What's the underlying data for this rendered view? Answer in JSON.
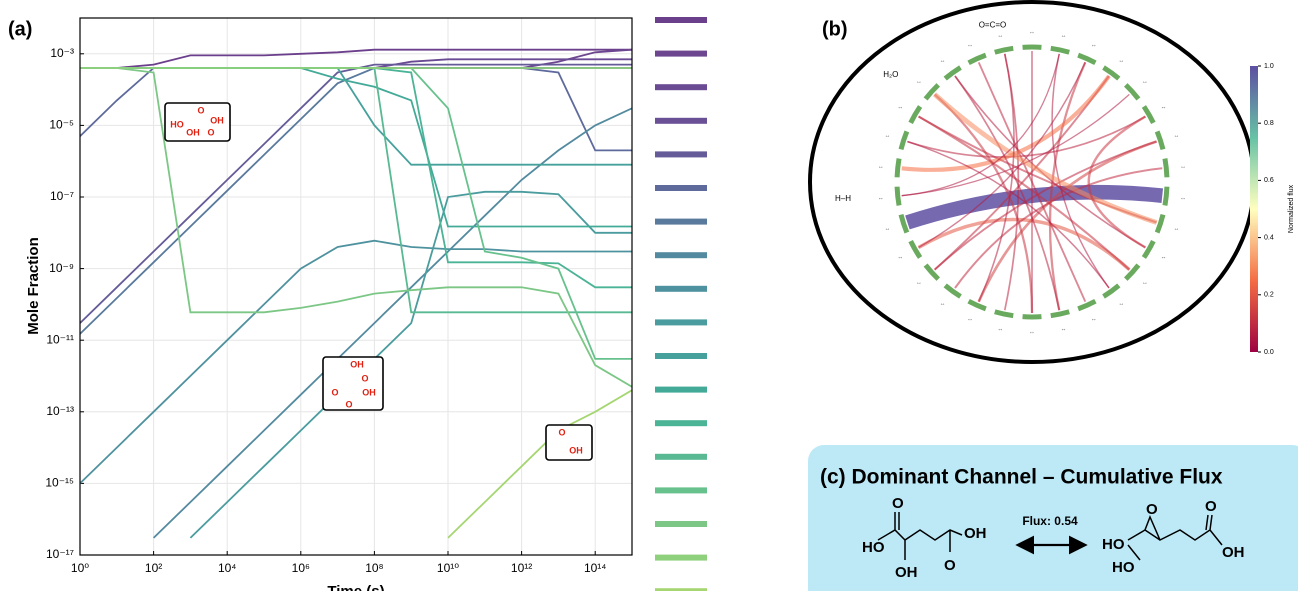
{
  "chart_data": [
    {
      "type": "line",
      "panel": "(a)",
      "xlabel": "Time (s)",
      "ylabel": "Mole Fraction",
      "xscale": "log",
      "yscale": "log",
      "grid": true,
      "xlim": [
        1,
        1000000000000000.0
      ],
      "ylim": [
        1e-17,
        0.01
      ],
      "xticks": [
        {
          "value": 1,
          "label": "10⁰"
        },
        {
          "value": 100,
          "label": "10²"
        },
        {
          "value": 10000,
          "label": "10⁴"
        },
        {
          "value": 1000000.0,
          "label": "10⁶"
        },
        {
          "value": 100000000.0,
          "label": "10⁸"
        },
        {
          "value": 10000000000.0,
          "label": "10¹⁰"
        },
        {
          "value": 1000000000000.0,
          "label": "10¹²"
        },
        {
          "value": 100000000000000.0,
          "label": "10¹⁴"
        }
      ],
      "yticks": [
        {
          "value": 1e-17,
          "label": "10⁻¹⁷"
        },
        {
          "value": 1e-15,
          "label": "10⁻¹⁵"
        },
        {
          "value": 1e-13,
          "label": "10⁻¹³"
        },
        {
          "value": 1e-11,
          "label": "10⁻¹¹"
        },
        {
          "value": 1e-09,
          "label": "10⁻⁹"
        },
        {
          "value": 1e-07,
          "label": "10⁻⁷"
        },
        {
          "value": 1e-05,
          "label": "10⁻⁵"
        },
        {
          "value": 0.001,
          "label": "10⁻³"
        }
      ],
      "x": [
        1,
        10,
        100,
        1000,
        10000,
        100000.0,
        1000000.0,
        10000000.0,
        100000000.0,
        1000000000.0,
        10000000000.0,
        100000000000.0,
        1000000000000.0,
        10000000000000.0,
        100000000000000.0,
        1000000000000000.0
      ],
      "series": [
        {
          "color": "#6b3f8c",
          "values": [
            0.0004,
            0.0004,
            0.0005,
            0.0009,
            0.0009,
            0.0009,
            0.001,
            0.0011,
            0.0013,
            0.0013,
            0.0013,
            0.0013,
            0.0013,
            0.0013,
            0.0013,
            0.0013
          ]
        },
        {
          "color": "#6d4690",
          "values": [
            0.0004,
            0.0004,
            0.0004,
            0.0004,
            0.0004,
            0.0004,
            0.0004,
            0.0004,
            0.0004,
            0.0004,
            0.0004,
            0.0004,
            0.0004,
            0.0006,
            0.0011,
            0.0013
          ]
        },
        {
          "color": "#6a4a92",
          "values": [
            0.0004,
            0.0004,
            0.0004,
            0.0004,
            0.0004,
            0.0004,
            0.0004,
            0.0004,
            0.0004,
            0.0006,
            0.0007,
            0.0007,
            0.0007,
            0.0007,
            0.0007,
            0.0007
          ]
        },
        {
          "color": "#6a5196",
          "values": [
            0.0004,
            0.0004,
            0.0004,
            0.0004,
            0.0004,
            0.0004,
            0.0004,
            0.0004,
            0.0004,
            0.0004,
            0.0004,
            0.0004,
            0.0004,
            0.0004,
            0.0004,
            0.0004
          ]
        },
        {
          "color": "#645b98",
          "values": [
            3e-11,
            3e-10,
            3e-09,
            3e-08,
            3e-07,
            3e-06,
            3e-05,
            0.0003,
            0.0005,
            0.0005,
            0.0005,
            0.0005,
            0.0005,
            0.0005,
            0.0005,
            0.0005
          ]
        },
        {
          "color": "#5f6a9c",
          "values": [
            5e-06,
            5e-05,
            0.0004,
            0.0004,
            0.0004,
            0.0004,
            0.0004,
            0.0004,
            0.0004,
            0.0004,
            0.0004,
            0.0004,
            0.0004,
            0.0003,
            2e-06,
            2e-06
          ]
        },
        {
          "color": "#597a9d",
          "values": [
            1.5e-11,
            1.5e-10,
            1.5e-09,
            1.5e-08,
            1.5e-07,
            1.5e-06,
            1.5e-05,
            0.00015,
            0.0004,
            0.0004,
            0.0004,
            0.0004,
            0.0004,
            0.0004,
            0.0004,
            0.0004
          ]
        },
        {
          "color": "#548a9f",
          "values": [
            null,
            null,
            3e-17,
            3e-16,
            3e-15,
            3e-14,
            3e-13,
            3e-12,
            3e-11,
            3e-10,
            3e-09,
            3e-08,
            3e-07,
            2e-06,
            1e-05,
            3e-05
          ]
        },
        {
          "color": "#4f929f",
          "values": [
            1e-15,
            1e-14,
            1e-13,
            1e-12,
            1e-11,
            1e-10,
            1e-09,
            4e-09,
            6e-09,
            4e-09,
            3.5e-09,
            3.5e-09,
            3e-09,
            3e-09,
            3e-09,
            3e-09
          ]
        },
        {
          "color": "#4a9c9e",
          "values": [
            null,
            null,
            null,
            3e-17,
            3e-16,
            3e-15,
            3e-14,
            3e-13,
            3e-12,
            3e-11,
            1e-07,
            1.4e-07,
            1.4e-07,
            1.2e-07,
            1e-08,
            1e-08
          ]
        },
        {
          "color": "#46a19c",
          "values": [
            0.0004,
            0.0004,
            0.0004,
            0.0004,
            0.0004,
            0.0004,
            0.0004,
            0.0004,
            1e-05,
            8e-07,
            8e-07,
            8e-07,
            8e-07,
            8e-07,
            8e-07,
            8e-07
          ]
        },
        {
          "color": "#43aa98",
          "values": [
            0.0004,
            0.0004,
            0.0004,
            0.0004,
            0.0004,
            0.0004,
            0.0004,
            0.0002,
            0.00012,
            5e-05,
            1.5e-08,
            1.5e-08,
            1.5e-08,
            1.5e-08,
            1.5e-08,
            1.5e-08
          ]
        },
        {
          "color": "#4bb396",
          "values": [
            0.0004,
            0.0004,
            0.0004,
            0.0004,
            0.0004,
            0.0004,
            0.0004,
            0.0004,
            0.0004,
            0.0003,
            1.5e-09,
            1.5e-09,
            1.5e-09,
            1.4e-09,
            3e-10,
            3e-10
          ]
        },
        {
          "color": "#58b992",
          "values": [
            0.0004,
            0.0004,
            0.0004,
            0.0004,
            0.0004,
            0.0004,
            0.0004,
            0.0004,
            0.0004,
            6e-11,
            6e-11,
            6e-11,
            6e-11,
            6e-11,
            6e-11,
            6e-11
          ]
        },
        {
          "color": "#67c18d",
          "values": [
            0.0004,
            0.0004,
            0.0004,
            0.0004,
            0.0004,
            0.0004,
            0.0004,
            0.0004,
            0.0004,
            0.0004,
            3e-05,
            3e-09,
            2e-09,
            1e-09,
            3e-12,
            3e-12
          ]
        },
        {
          "color": "#7cc785",
          "values": [
            0.0004,
            0.0004,
            0.0003,
            6e-11,
            6e-11,
            6e-11,
            8e-11,
            1.2e-10,
            2e-10,
            2.5e-10,
            3e-10,
            3e-10,
            3e-10,
            2e-10,
            2e-12,
            5e-13
          ]
        },
        {
          "color": "#8fd07d",
          "values": [
            0.0004,
            0.0004,
            0.0004,
            0.0004,
            0.0004,
            0.0004,
            0.0004,
            0.0004,
            0.0004,
            0.0004,
            0.0004,
            0.0004,
            0.0004,
            0.0004,
            0.0004,
            0.0004
          ]
        },
        {
          "color": "#a6d672",
          "values": [
            null,
            null,
            null,
            null,
            null,
            null,
            null,
            null,
            null,
            null,
            3e-17,
            3e-16,
            3e-15,
            3e-14,
            1e-13,
            4e-13
          ]
        }
      ],
      "annotations": [
        [
          "O",
          "HO",
          "OH",
          "OH",
          "O"
        ],
        [
          "OH",
          "O",
          "O",
          "OH",
          "O"
        ],
        [
          "O",
          "OH"
        ]
      ]
    },
    {
      "type": "chord",
      "panel": "(b)",
      "nodes": [
        null,
        null,
        null,
        null,
        null,
        null,
        null,
        null,
        null,
        null,
        null,
        null,
        null,
        null,
        null,
        null,
        null,
        null,
        null,
        null,
        null,
        null,
        "H–H",
        null,
        null,
        null,
        "H₂O",
        null,
        null,
        "O=C=O"
      ],
      "node_color": "#6aaa5e",
      "links": [
        {
          "source": 8,
          "target": 21,
          "flux": 1.0
        },
        {
          "source": 2,
          "target": 14,
          "flux": 0.12
        },
        {
          "source": 3,
          "target": 19,
          "flux": 0.1
        },
        {
          "source": 5,
          "target": 24,
          "flux": 0.08
        },
        {
          "source": 6,
          "target": 17,
          "flux": 0.15
        },
        {
          "source": 1,
          "target": 12,
          "flux": 0.06
        },
        {
          "source": 9,
          "target": 25,
          "flux": 0.1
        },
        {
          "source": 10,
          "target": 27,
          "flux": 0.07
        },
        {
          "source": 11,
          "target": 20,
          "flux": 0.2
        },
        {
          "source": 13,
          "target": 28,
          "flux": 0.09
        },
        {
          "source": 4,
          "target": 22,
          "flux": 0.05
        },
        {
          "source": 15,
          "target": 26,
          "flux": 0.12
        },
        {
          "source": 16,
          "target": 29,
          "flux": 0.08
        },
        {
          "source": 18,
          "target": 7,
          "flux": 0.1
        },
        {
          "source": 23,
          "target": 3,
          "flux": 0.25
        },
        {
          "source": 0,
          "target": 15,
          "flux": 0.07
        },
        {
          "source": 12,
          "target": 24,
          "flux": 0.06
        },
        {
          "source": 19,
          "target": 6,
          "flux": 0.09
        },
        {
          "source": 25,
          "target": 11,
          "flux": 0.11
        },
        {
          "source": 27,
          "target": 14,
          "flux": 0.08
        },
        {
          "source": 20,
          "target": 2,
          "flux": 0.06
        },
        {
          "source": 26,
          "target": 9,
          "flux": 0.3
        },
        {
          "source": 29,
          "target": 17,
          "flux": 0.07
        },
        {
          "source": 1,
          "target": 22,
          "flux": 0.05
        },
        {
          "source": 5,
          "target": 10,
          "flux": 0.13
        }
      ],
      "colorbar": {
        "label": "Normalized flux",
        "lim": [
          0,
          1
        ],
        "ticks": [
          {
            "value": 0,
            "label": "0.0"
          },
          {
            "value": 0.2,
            "label": "0.2"
          },
          {
            "value": 0.4,
            "label": "0.4"
          },
          {
            "value": 0.6,
            "label": "0.6"
          },
          {
            "value": 0.8,
            "label": "0.8"
          },
          {
            "value": 1,
            "label": "1.0"
          }
        ]
      }
    }
  ],
  "panel_c": {
    "title": "(c) Dominant Channel – Cumulative Flux",
    "flux": {
      "value": 0.54,
      "label": "Flux: 0.54"
    },
    "reactant": [
      "O",
      "HO",
      "OH",
      "OH",
      "O"
    ],
    "product": [
      "O",
      "HO",
      "HO",
      "O",
      "OH"
    ]
  }
}
